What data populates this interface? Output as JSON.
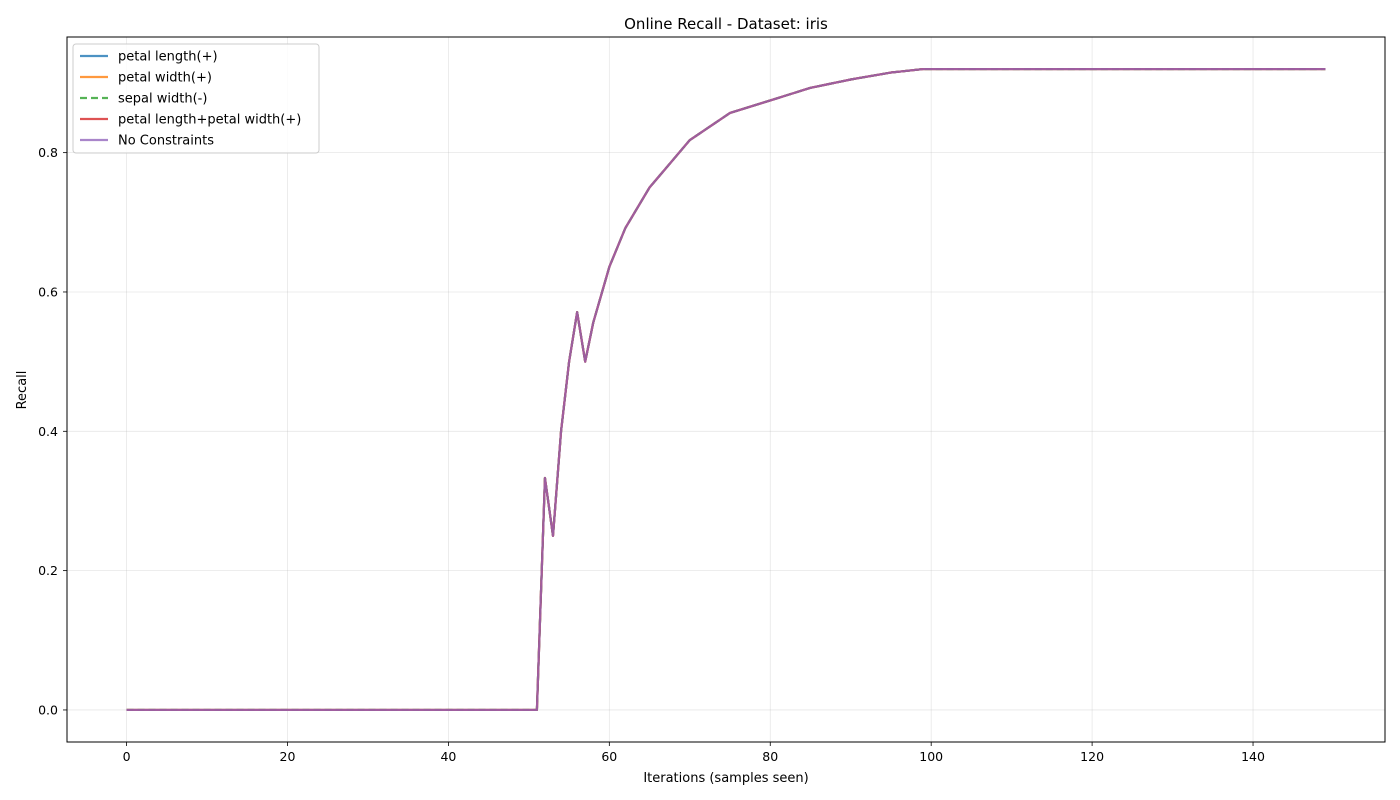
{
  "chart_data": {
    "type": "line",
    "title": "Online Recall - Dataset: iris",
    "xlabel": "Iterations (samples seen)",
    "ylabel": "Recall",
    "xlim": [
      -7.4,
      156.4
    ],
    "ylim": [
      -0.046,
      0.966
    ],
    "xticks": [
      0,
      20,
      40,
      60,
      80,
      100,
      120,
      140
    ],
    "yticks": [
      0.0,
      0.2,
      0.4,
      0.6,
      0.8
    ],
    "ytick_labels": [
      "0.0",
      "0.2",
      "0.4",
      "0.6",
      "0.8"
    ],
    "grid": true,
    "legend_position": "top-left",
    "x_start": 0,
    "x_end": 149,
    "key_points": [
      [
        0,
        0.0
      ],
      [
        51,
        0.0
      ],
      [
        52,
        0.333
      ],
      [
        53,
        0.25
      ],
      [
        54,
        0.4
      ],
      [
        55,
        0.5
      ],
      [
        56,
        0.571
      ],
      [
        57,
        0.5
      ],
      [
        58,
        0.556
      ],
      [
        60,
        0.636
      ],
      [
        62,
        0.692
      ],
      [
        65,
        0.75
      ],
      [
        70,
        0.818
      ],
      [
        75,
        0.857
      ],
      [
        80,
        0.875
      ],
      [
        85,
        0.893
      ],
      [
        90,
        0.905
      ],
      [
        95,
        0.915
      ],
      [
        99,
        0.92
      ],
      [
        149,
        0.92
      ]
    ],
    "series": [
      {
        "name": "petal length(+)",
        "color": "#1f77b4",
        "dash": "solid"
      },
      {
        "name": "petal width(+)",
        "color": "#ff7f0e",
        "dash": "solid"
      },
      {
        "name": "sepal width(-)",
        "color": "#2ca02c",
        "dash": "dashed"
      },
      {
        "name": "petal length+petal width(+)",
        "color": "#d62728",
        "dash": "solid"
      },
      {
        "name": "No Constraints",
        "color": "#9467bd",
        "dash": "solid"
      }
    ]
  }
}
